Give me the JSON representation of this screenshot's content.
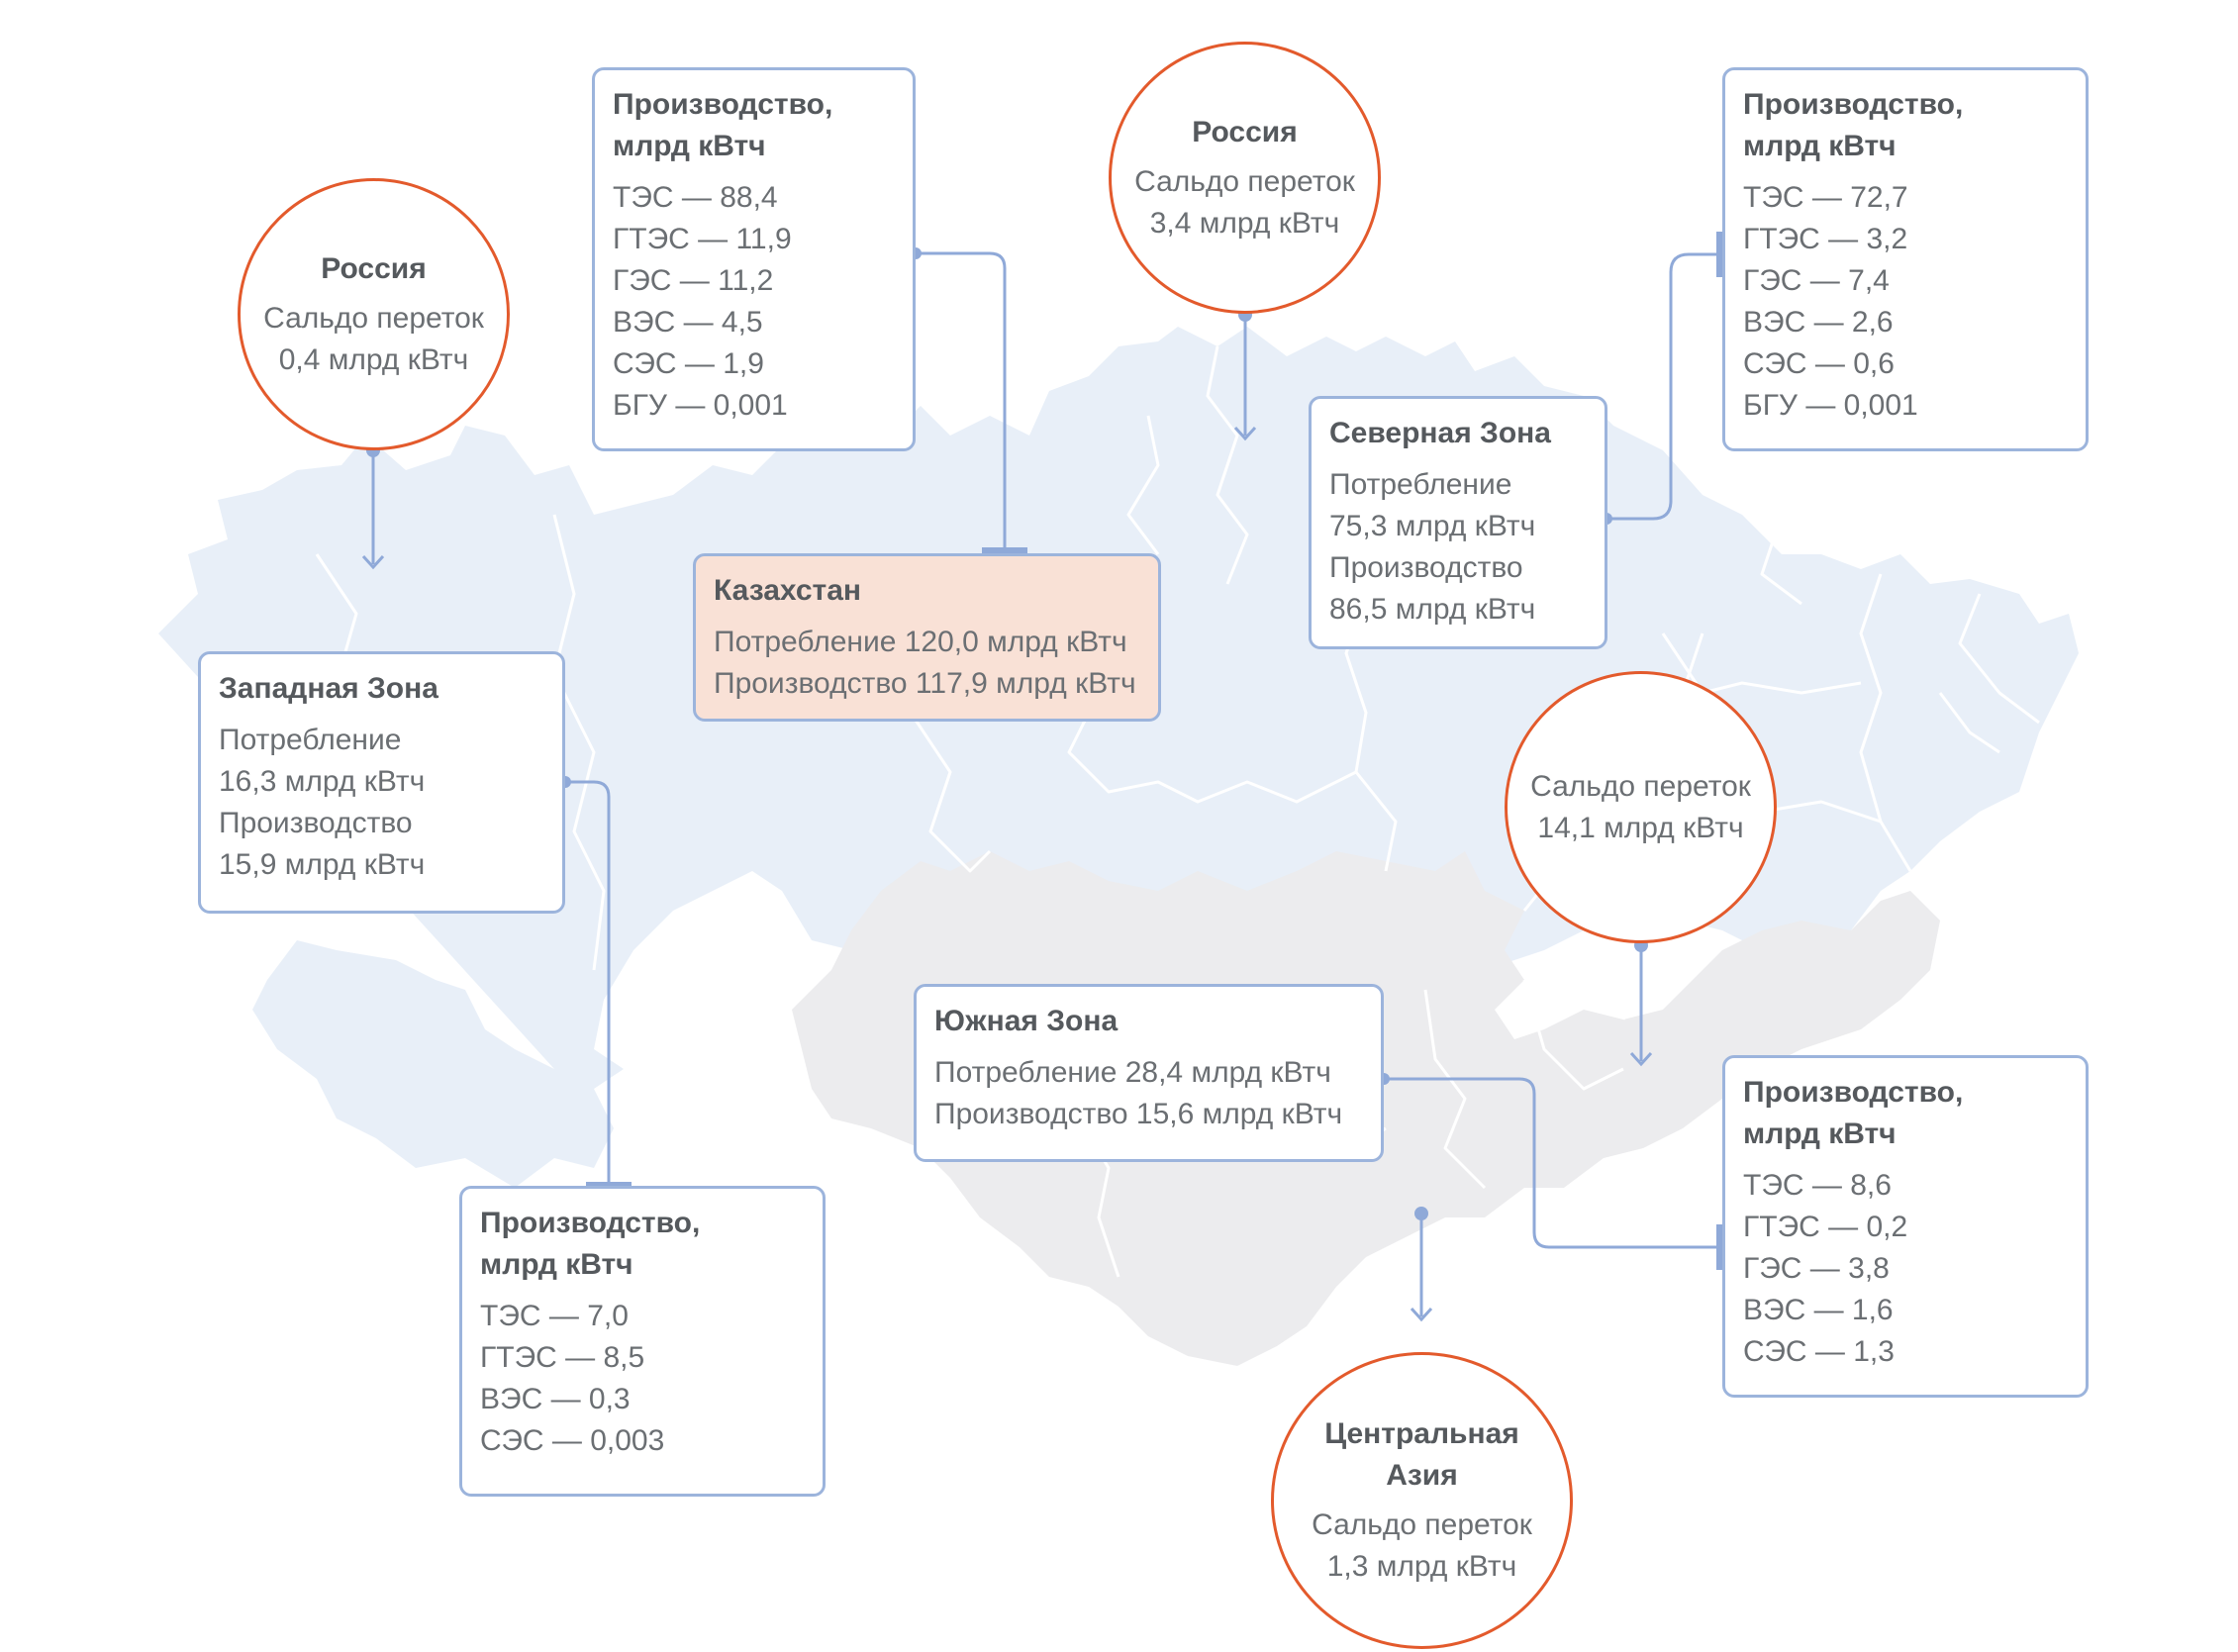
{
  "colors": {
    "north_map": "#e8eff8",
    "south_map": "#ececee",
    "region_border": "#ffffff",
    "box_border": "#9cb4dc",
    "connector": "#8fa9d8",
    "circle_border": "#e35a2c",
    "kazakhstan_fill": "#f9e1d6"
  },
  "kazakhstan": {
    "title": "Казахстан",
    "consumption": "Потребление 120,0 млрд кВтч",
    "production": "Производство 117,9 млрд кВтч"
  },
  "kz_production": {
    "title_1": "Производство,",
    "title_2": "млрд кВтч",
    "items": [
      "ТЭС — 88,4",
      "ГТЭС — 11,9",
      "ГЭС — 11,2",
      "ВЭС — 4,5",
      "СЭС — 1,9",
      "БГУ — 0,001"
    ]
  },
  "russia_top": {
    "title": "Россия",
    "line1": "Сальдо переток",
    "line2": "3,4 млрд кВтч"
  },
  "russia_west": {
    "title": "Россия",
    "line1": "Сальдо переток",
    "line2": "0,4 млрд кВтч"
  },
  "north_zone": {
    "title": "Северная Зона",
    "l1": "Потребление",
    "l2": "75,3 млрд кВтч",
    "l3": "Производство",
    "l4": "86,5 млрд кВтч"
  },
  "north_production": {
    "title_1": "Производство,",
    "title_2": "млрд кВтч",
    "items": [
      "ТЭС — 72,7",
      "ГТЭС — 3,2",
      "ГЭС — 7,4",
      "ВЭС — 2,6",
      "СЭС — 0,6",
      "БГУ — 0,001"
    ]
  },
  "west_zone": {
    "title": "Западная Зона",
    "l1": "Потребление",
    "l2": "16,3 млрд кВтч",
    "l3": "Производство",
    "l4": "15,9 млрд кВтч"
  },
  "west_production": {
    "title_1": "Производство,",
    "title_2": "млрд кВтч",
    "items": [
      "ТЭС — 7,0",
      "ГТЭС — 8,5",
      "ВЭС — 0,3",
      "СЭС — 0,003"
    ]
  },
  "south_zone": {
    "title": "Южная Зона",
    "consumption": "Потребление 28,4 млрд кВтч",
    "production": "Производство 15,6 млрд кВтч"
  },
  "south_production": {
    "title_1": "Производство,",
    "title_2": "млрд кВтч",
    "items": [
      "ТЭС — 8,6",
      "ГТЭС — 0,2",
      "ГЭС — 3,8",
      "ВЭС — 1,6",
      "СЭС — 1,3"
    ]
  },
  "south_flow": {
    "line1": "Сальдо переток",
    "line2": "14,1 млрд кВтч"
  },
  "central_asia": {
    "title_1": "Центральная",
    "title_2": "Азия",
    "line1": "Сальдо переток",
    "line2": "1,3 млрд кВтч"
  }
}
